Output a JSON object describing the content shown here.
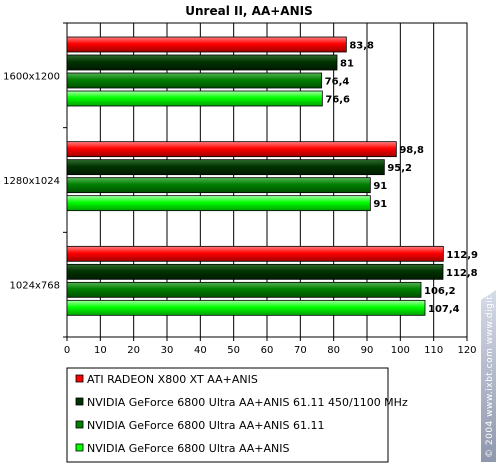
{
  "chart_data": {
    "type": "bar",
    "orientation": "horizontal",
    "title": "Unreal II, AA+ANIS",
    "categories": [
      "1600x1200",
      "1280x1024",
      "1024x768"
    ],
    "series": [
      {
        "name": "ATI RADEON X800 XT AA+ANIS",
        "values": [
          83.8,
          98.8,
          112.9
        ],
        "labels": [
          "83,8",
          "98,8",
          "112,9"
        ],
        "color": "#ff0000"
      },
      {
        "name": "NVIDIA GeForce 6800 Ultra AA+ANIS 61.11 450/1100 MHz",
        "values": [
          81,
          95.2,
          112.8
        ],
        "labels": [
          "81",
          "95,2",
          "112,8"
        ],
        "color": "#003300"
      },
      {
        "name": "NVIDIA GeForce 6800 Ultra AA+ANIS 61.11",
        "values": [
          76.4,
          91,
          106.2
        ],
        "labels": [
          "76,4",
          "91",
          "106,2"
        ],
        "color": "#008000"
      },
      {
        "name": "NVIDIA GeForce 6800 Ultra AA+ANIS",
        "values": [
          76.6,
          91,
          107.4
        ],
        "labels": [
          "76,6",
          "91",
          "107,4"
        ],
        "color": "#00ff00"
      }
    ],
    "xlim": [
      0,
      120
    ],
    "xticks": [
      0,
      10,
      20,
      30,
      40,
      50,
      60,
      70,
      80,
      90,
      100,
      110,
      120
    ],
    "grid": true,
    "legend_position": "bottom"
  },
  "watermark": "© 2004 www.ixbt.com  www.digit-life.com"
}
